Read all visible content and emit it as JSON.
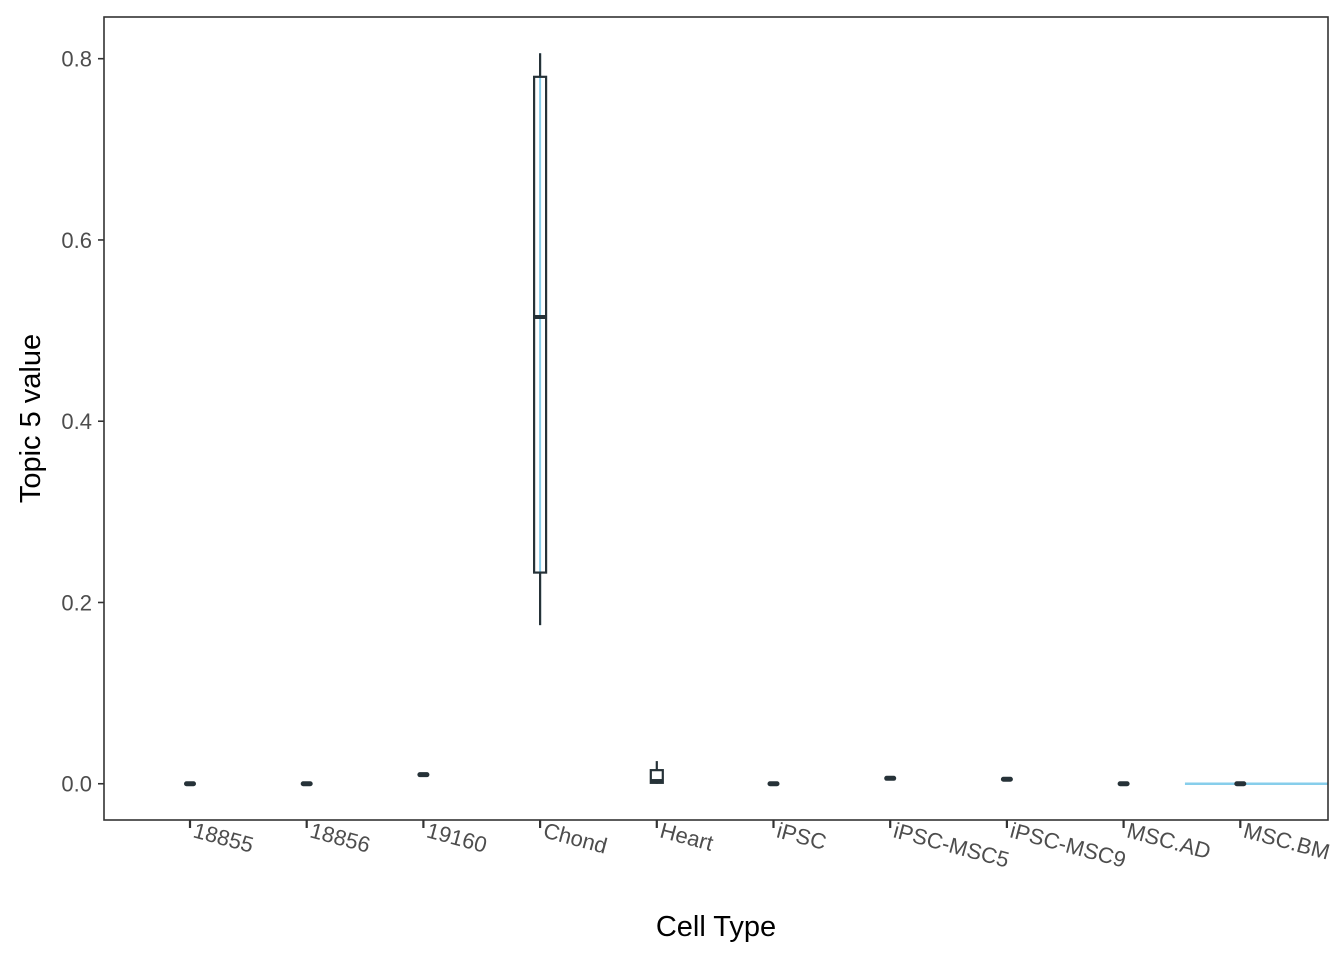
{
  "chart_data": {
    "type": "box",
    "title": "",
    "xlabel": "Cell Type",
    "ylabel": "Topic 5 value",
    "ylim": [
      -0.04,
      0.846
    ],
    "yticks": [
      0.0,
      0.2,
      0.4,
      0.6,
      0.8
    ],
    "ytick_labels": [
      "0.0",
      "0.2",
      "0.4",
      "0.6",
      "0.8"
    ],
    "grid": false,
    "colors": {
      "box_line": "#263238",
      "ridge_line": "#87CEEB",
      "panel_border": "#333333"
    },
    "categories": [
      "18855",
      "18856",
      "19160",
      "Chond",
      "Heart",
      "iPSC",
      "iPSC-MSC5",
      "iPSC-MSC9",
      "MSC.AD",
      "MSC.BM"
    ],
    "boxes": [
      {
        "category": "18855",
        "min": 0.0,
        "q1": 0.0,
        "median": 0.0,
        "q3": 0.0,
        "max": 0.0
      },
      {
        "category": "18856",
        "min": 0.0,
        "q1": 0.0,
        "median": 0.0,
        "q3": 0.0,
        "max": 0.0
      },
      {
        "category": "19160",
        "min": 0.009,
        "q1": 0.009,
        "median": 0.01,
        "q3": 0.011,
        "max": 0.011
      },
      {
        "category": "Chond",
        "min": 0.175,
        "q1": 0.233,
        "median": 0.515,
        "q3": 0.78,
        "max": 0.806
      },
      {
        "category": "Heart",
        "min": 0.0,
        "q1": 0.001,
        "median": 0.003,
        "q3": 0.015,
        "max": 0.025
      },
      {
        "category": "iPSC",
        "min": 0.0,
        "q1": 0.0,
        "median": 0.0,
        "q3": 0.0,
        "max": 0.0
      },
      {
        "category": "iPSC-MSC5",
        "min": 0.005,
        "q1": 0.005,
        "median": 0.006,
        "q3": 0.007,
        "max": 0.007
      },
      {
        "category": "iPSC-MSC9",
        "min": 0.004,
        "q1": 0.004,
        "median": 0.005,
        "q3": 0.006,
        "max": 0.006
      },
      {
        "category": "MSC.AD",
        "min": 0.0,
        "q1": 0.0,
        "median": 0.0,
        "q3": 0.0,
        "max": 0.0
      },
      {
        "category": "MSC.BM",
        "min": 0.0,
        "q1": 0.0,
        "median": 0.0,
        "q3": 0.0,
        "max": 0.0
      }
    ],
    "density_ridges": [
      {
        "category": "Chond",
        "orientation": "vertical",
        "from": 0.175,
        "to": 0.806
      },
      {
        "category": "MSC.BM",
        "orientation": "horizontal",
        "value": 0.0,
        "from_category": "MSC.AD",
        "to_category": "MSC.BM",
        "extends_to_panel_edge": true
      }
    ]
  }
}
